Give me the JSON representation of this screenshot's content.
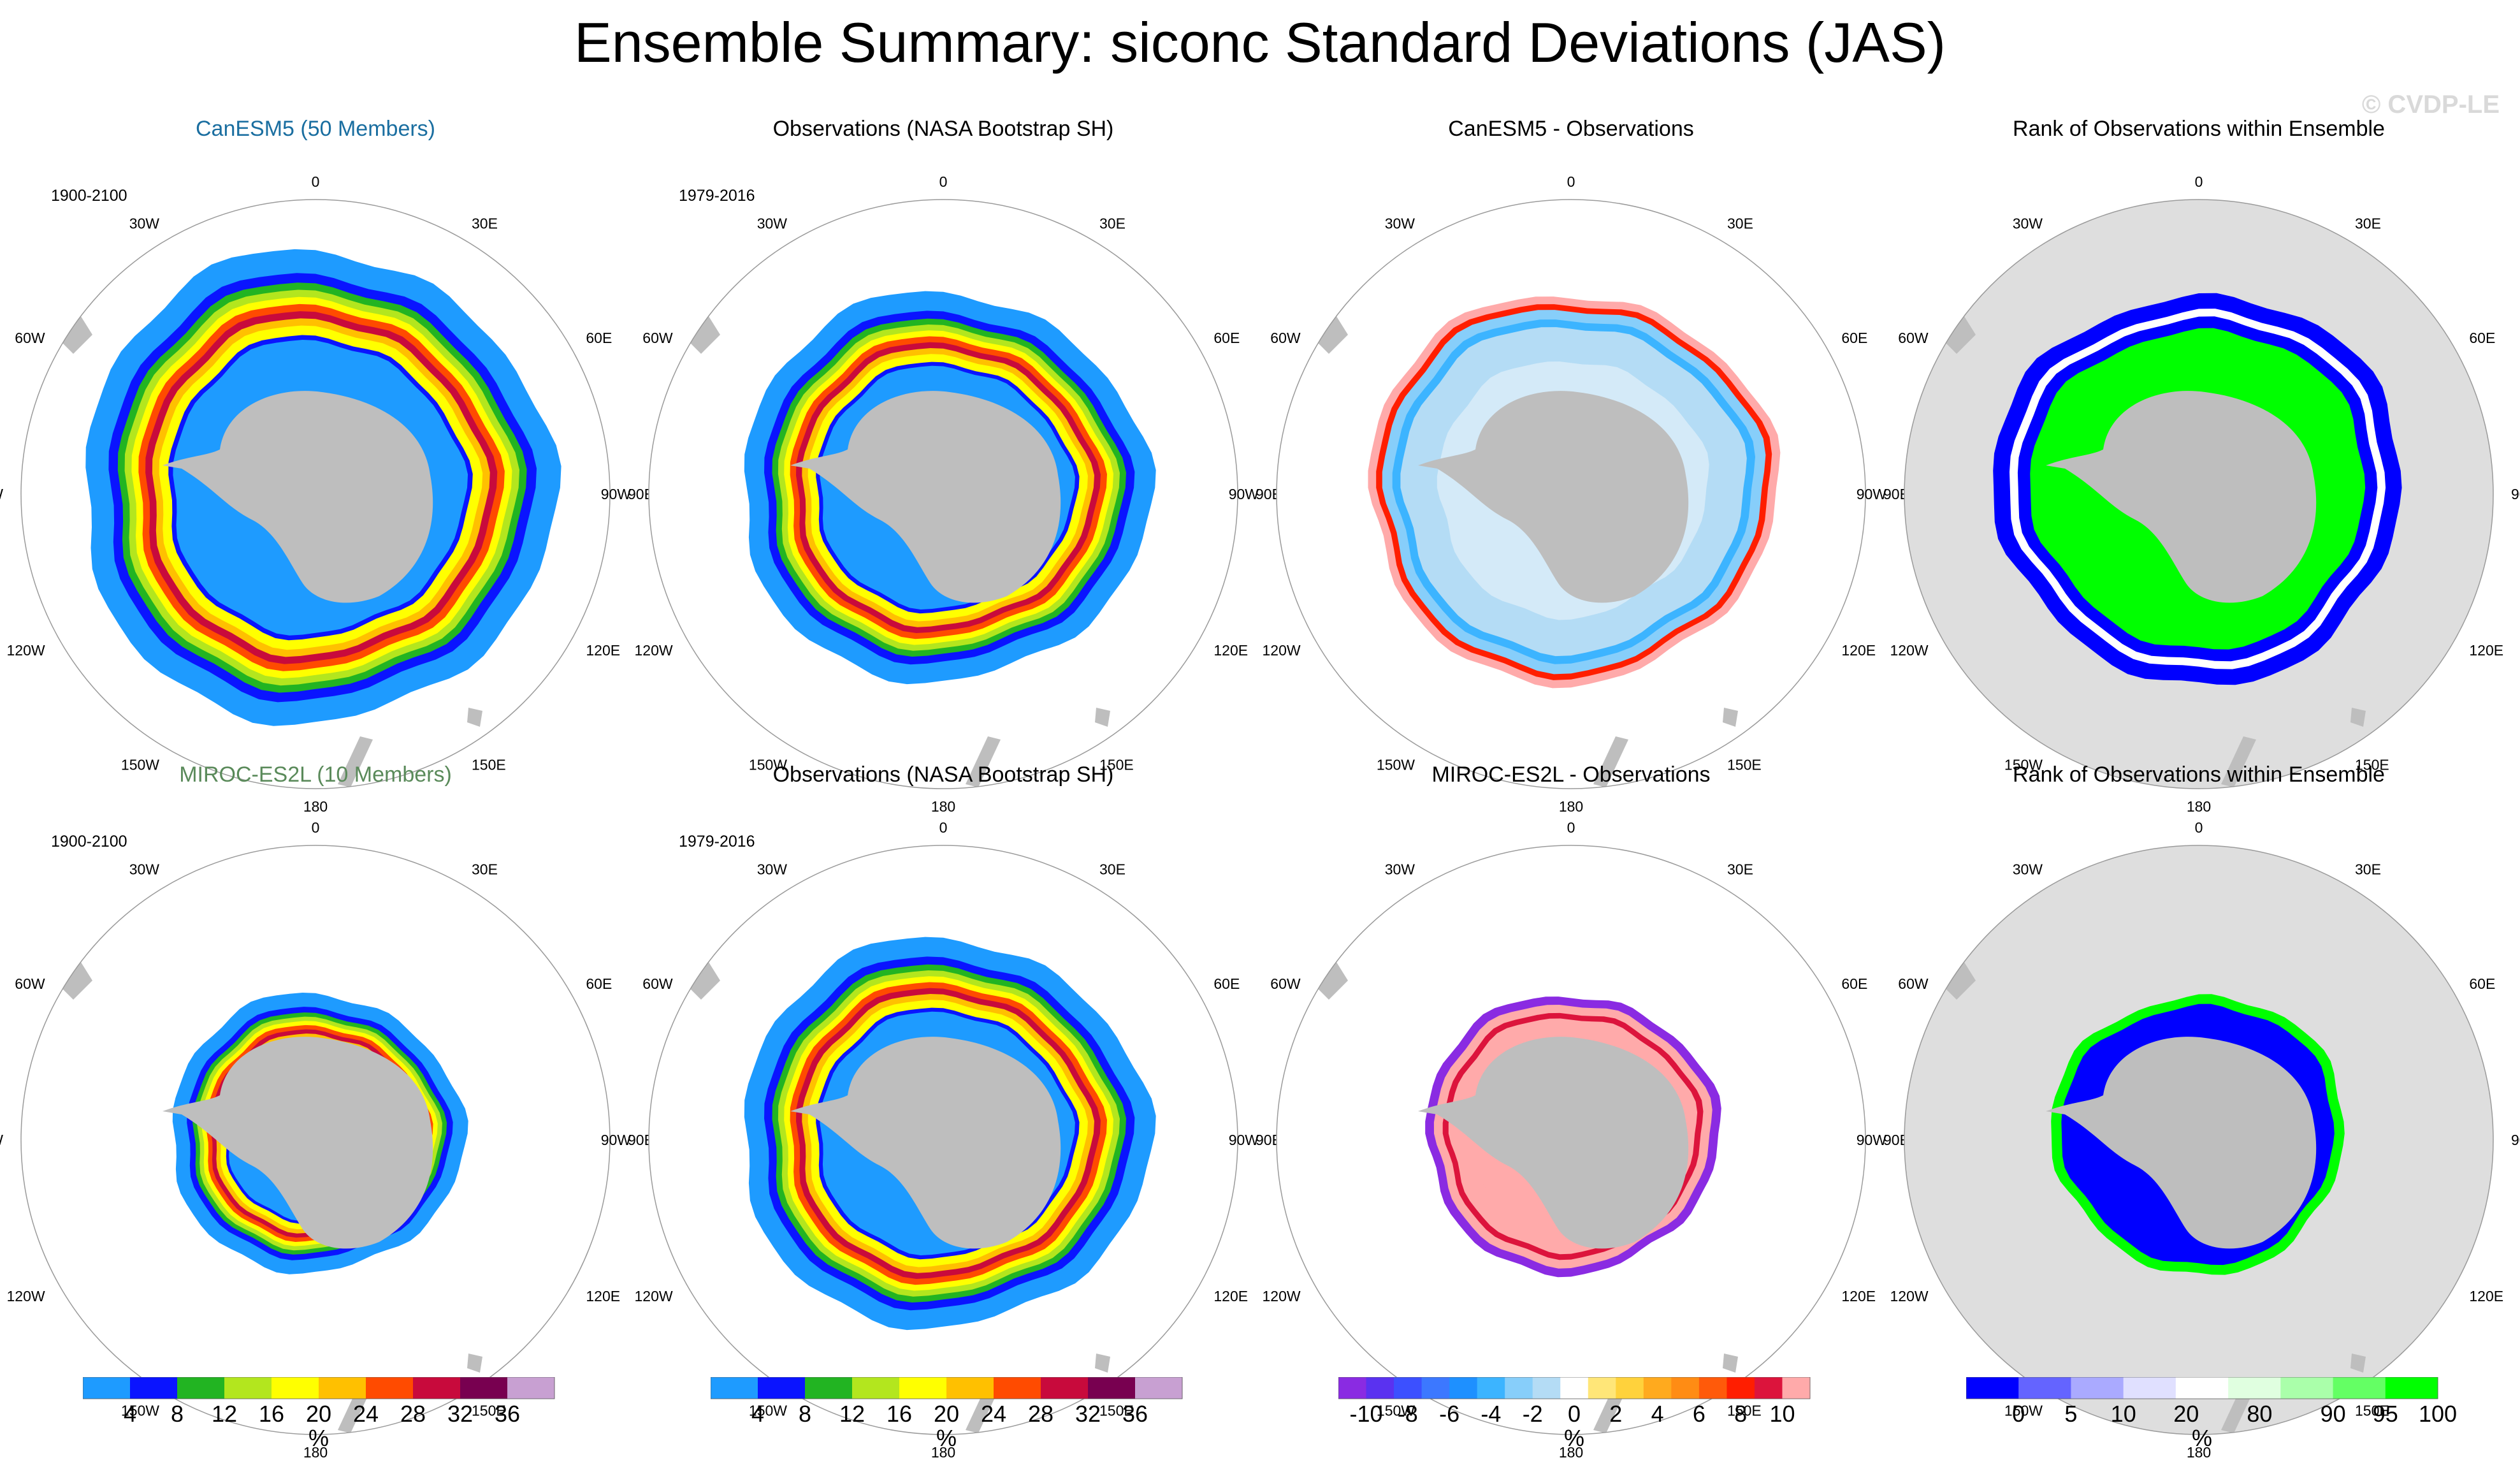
{
  "title": "Ensemble Summary: siconc Standard Deviations (JAS)",
  "copyright": "© CVDP-LE",
  "longitude_labels": [
    "0",
    "30E",
    "60E",
    "90E",
    "120E",
    "150E",
    "180",
    "150W",
    "120W",
    "90W",
    "60W",
    "30W"
  ],
  "colors": {
    "land": "#bebebe",
    "rank_background": "#dedede",
    "std_palette": [
      "#1e9bff",
      "#0a14ff",
      "#22b422",
      "#b3e61e",
      "#ffff00",
      "#ffc000",
      "#ff4b00",
      "#c80a3c",
      "#780050",
      "#c8a0d2"
    ],
    "diff_palette": [
      "#8a2be2",
      "#5a32f0",
      "#3c50ff",
      "#3c78ff",
      "#1e90ff",
      "#3cb4ff",
      "#87cefa",
      "#b4dcf5",
      "#ffffff",
      "#ffe678",
      "#ffd23c",
      "#ffaa1e",
      "#ff8c14",
      "#ff5a0a",
      "#ff1e00",
      "#dc143c",
      "#ffaaaa"
    ],
    "rank_palette": [
      "#0000ff",
      "#6464ff",
      "#aaaaff",
      "#e0e0ff",
      "#ffffff",
      "#e0ffe0",
      "#aaffaa",
      "#64ff64",
      "#00ff00"
    ]
  },
  "panels": [
    {
      "title": "CanESM5 (50 Members)",
      "title_color": "#1a6ea0",
      "period": "1900-2100",
      "kind": "std",
      "ice_extent": "large"
    },
    {
      "title": "Observations (NASA Bootstrap SH)",
      "title_color": "#000000",
      "period": "1979-2016",
      "kind": "std",
      "ice_extent": "obs"
    },
    {
      "title": "CanESM5 - Observations",
      "title_color": "#000000",
      "period": "",
      "kind": "diff",
      "ice_extent": "obs"
    },
    {
      "title": "Rank of Observations within Ensemble",
      "title_color": "#000000",
      "period": "",
      "kind": "rank",
      "ice_extent": "obs"
    },
    {
      "title": "MIROC-ES2L (10 Members)",
      "title_color": "#5a8a5a",
      "period": "1900-2100",
      "kind": "std",
      "ice_extent": "small"
    },
    {
      "title": "Observations (NASA Bootstrap SH)",
      "title_color": "#000000",
      "period": "1979-2016",
      "kind": "std",
      "ice_extent": "obs"
    },
    {
      "title": "MIROC-ES2L - Observations",
      "title_color": "#000000",
      "period": "",
      "kind": "diff",
      "ice_extent": "small"
    },
    {
      "title": "Rank of Observations within Ensemble",
      "title_color": "#000000",
      "period": "",
      "kind": "rank",
      "ice_extent": "small"
    }
  ],
  "colorbars": [
    {
      "kind": "std",
      "unit": "%",
      "ticks": [
        "4",
        "8",
        "12",
        "16",
        "20",
        "24",
        "28",
        "32",
        "36"
      ]
    },
    {
      "kind": "std",
      "unit": "%",
      "ticks": [
        "4",
        "8",
        "12",
        "16",
        "20",
        "24",
        "28",
        "32",
        "36"
      ]
    },
    {
      "kind": "diff",
      "unit": "%",
      "ticks": [
        "-10",
        "-8",
        "-6",
        "-4",
        "-2",
        "0",
        "2",
        "4",
        "6",
        "8",
        "10"
      ]
    },
    {
      "kind": "rank",
      "unit": "%",
      "ticks": [
        "0",
        "5",
        "10",
        "20",
        "80",
        "90",
        "95",
        "100"
      ]
    }
  ],
  "chart_data": [
    {
      "type": "heatmap",
      "title": "CanESM5 (50 Members)",
      "subtitle": "1900-2100",
      "projection": "south polar stereographic",
      "variable": "siconc standard deviation",
      "units": "%",
      "levels": [
        4,
        8,
        12,
        16,
        20,
        24,
        28,
        32,
        36
      ]
    },
    {
      "type": "heatmap",
      "title": "Observations (NASA Bootstrap SH)",
      "subtitle": "1979-2016",
      "projection": "south polar stereographic",
      "variable": "siconc standard deviation",
      "units": "%",
      "levels": [
        4,
        8,
        12,
        16,
        20,
        24,
        28,
        32,
        36
      ]
    },
    {
      "type": "heatmap",
      "title": "CanESM5 - Observations",
      "projection": "south polar stereographic",
      "units": "%",
      "levels": [
        -10,
        -8,
        -6,
        -4,
        -2,
        0,
        2,
        4,
        6,
        8,
        10
      ]
    },
    {
      "type": "heatmap",
      "title": "Rank of Observations within Ensemble",
      "projection": "south polar stereographic",
      "units": "%",
      "levels": [
        0,
        5,
        10,
        20,
        80,
        90,
        95,
        100
      ]
    },
    {
      "type": "heatmap",
      "title": "MIROC-ES2L (10 Members)",
      "subtitle": "1900-2100",
      "projection": "south polar stereographic",
      "variable": "siconc standard deviation",
      "units": "%",
      "levels": [
        4,
        8,
        12,
        16,
        20,
        24,
        28,
        32,
        36
      ]
    },
    {
      "type": "heatmap",
      "title": "Observations (NASA Bootstrap SH)",
      "subtitle": "1979-2016",
      "projection": "south polar stereographic",
      "variable": "siconc standard deviation",
      "units": "%",
      "levels": [
        4,
        8,
        12,
        16,
        20,
        24,
        28,
        32,
        36
      ]
    },
    {
      "type": "heatmap",
      "title": "MIROC-ES2L - Observations",
      "projection": "south polar stereographic",
      "units": "%",
      "levels": [
        -10,
        -8,
        -6,
        -4,
        -2,
        0,
        2,
        4,
        6,
        8,
        10
      ]
    },
    {
      "type": "heatmap",
      "title": "Rank of Observations within Ensemble",
      "projection": "south polar stereographic",
      "units": "%",
      "levels": [
        0,
        5,
        10,
        20,
        80,
        90,
        95,
        100
      ]
    }
  ]
}
